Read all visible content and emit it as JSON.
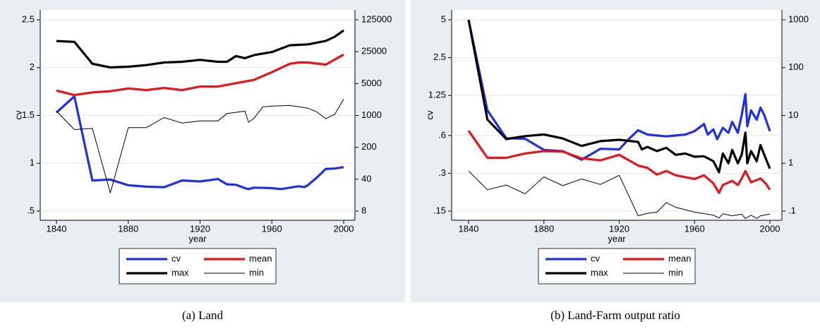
{
  "chart_data": [
    {
      "type": "line",
      "caption": "(a) Land",
      "xlabel": "year",
      "ylabel": "cv",
      "xlim": [
        1840,
        2000
      ],
      "xticks": [
        1840,
        1880,
        1920,
        1960,
        2000
      ],
      "ylim": [
        0.5,
        2.5
      ],
      "yticks": [
        {
          "value": 0.5,
          "label": ".5"
        },
        1,
        1.5,
        2,
        2.5
      ],
      "ylog": false,
      "y2lim": [
        8,
        125000
      ],
      "y2ticks": [
        8,
        40,
        200,
        1000,
        5000,
        25000,
        125000
      ],
      "y2log": true,
      "grid": true,
      "legend": "bottom",
      "series": [
        {
          "name": "cv",
          "color": "#1f2ee8",
          "linewidth": 3.2,
          "x": [
            1840,
            1850,
            1860,
            1870,
            1880,
            1890,
            1900,
            1910,
            1920,
            1930,
            1935,
            1940,
            1945,
            1947,
            1950,
            1960,
            1965,
            1970,
            1975,
            1978,
            1980,
            1985,
            1990,
            1995,
            2000
          ],
          "values": [
            1.53,
            1.7,
            0.82,
            0.83,
            0.77,
            0.755,
            0.75,
            0.82,
            0.81,
            0.835,
            0.78,
            0.775,
            0.74,
            0.73,
            0.745,
            0.74,
            0.73,
            0.745,
            0.76,
            0.75,
            0.77,
            0.85,
            0.94,
            0.945,
            0.96
          ]
        },
        {
          "name": "mean",
          "color": "#e8141b",
          "linewidth": 3.2,
          "axis": "y2",
          "x": [
            1840,
            1850,
            1860,
            1870,
            1880,
            1890,
            1900,
            1910,
            1920,
            1930,
            1940,
            1950,
            1960,
            1970,
            1975,
            1980,
            1990,
            2000
          ],
          "values": [
            3500,
            2800,
            3200,
            3400,
            3900,
            3600,
            4000,
            3600,
            4300,
            4300,
            5100,
            6000,
            8900,
            13600,
            14500,
            14500,
            13000,
            21600
          ]
        },
        {
          "name": "max",
          "color": "#000000",
          "linewidth": 3.2,
          "axis": "y2",
          "x": [
            1840,
            1850,
            1860,
            1870,
            1880,
            1890,
            1900,
            1910,
            1920,
            1930,
            1935,
            1940,
            1945,
            1950,
            1960,
            1970,
            1980,
            1990,
            1995,
            2000
          ],
          "values": [
            42800,
            41000,
            13600,
            11300,
            11700,
            12700,
            14500,
            15000,
            16500,
            15000,
            15000,
            20000,
            18000,
            21000,
            24500,
            34500,
            36000,
            43000,
            53000,
            73000
          ]
        },
        {
          "name": "min",
          "color": "#000000",
          "linewidth": 1,
          "axis": "y2",
          "x": [
            1840,
            1850,
            1860,
            1870,
            1880,
            1890,
            1900,
            1910,
            1920,
            1930,
            1935,
            1945,
            1947,
            1950,
            1955,
            1960,
            1970,
            1980,
            1985,
            1990,
            1995,
            2000
          ],
          "values": [
            1240,
            490,
            520,
            20,
            540,
            540,
            900,
            680,
            760,
            760,
            1100,
            1240,
            710,
            860,
            1540,
            1600,
            1650,
            1450,
            1200,
            850,
            1050,
            2270
          ]
        }
      ]
    },
    {
      "type": "line",
      "caption": "(b) Land-Farm output ratio",
      "xlabel": "year",
      "ylabel": "cv",
      "xlim": [
        1840,
        2000
      ],
      "xticks": [
        1840,
        1880,
        1920,
        1960,
        2000
      ],
      "ylim": [
        0.15,
        5
      ],
      "yticks": [
        {
          "value": 0.15,
          "label": ".15"
        },
        {
          "value": 0.3,
          "label": ".3"
        },
        {
          "value": 0.6,
          "label": ".6"
        },
        1.25,
        2.5,
        5
      ],
      "ylog": true,
      "y2lim": [
        0.1,
        1000
      ],
      "y2ticks": [
        {
          "value": 0.1,
          "label": ".1"
        },
        1,
        10,
        100,
        1000
      ],
      "y2log": true,
      "grid": true,
      "legend": "bottom",
      "series": [
        {
          "name": "cv",
          "color": "#1f2ee8",
          "linewidth": 3.2,
          "x": [
            1840,
            1850,
            1860,
            1870,
            1880,
            1890,
            1900,
            1910,
            1920,
            1925,
            1930,
            1935,
            1940,
            1945,
            1950,
            1955,
            1960,
            1965,
            1967,
            1970,
            1972,
            1975,
            1978,
            1980,
            1983,
            1985,
            1987,
            1988,
            1990,
            1993,
            1995,
            1997,
            2000
          ],
          "values": [
            5,
            0.95,
            0.57,
            0.565,
            0.46,
            0.45,
            0.385,
            0.47,
            0.465,
            0.56,
            0.66,
            0.61,
            0.6,
            0.59,
            0.6,
            0.61,
            0.65,
            0.74,
            0.61,
            0.67,
            0.56,
            0.69,
            0.63,
            0.77,
            0.63,
            0.87,
            1.28,
            0.71,
            0.95,
            0.8,
            1.0,
            0.87,
            0.65
          ]
        },
        {
          "name": "mean",
          "color": "#e8141b",
          "linewidth": 3.2,
          "axis": "y2",
          "x": [
            1840,
            1850,
            1860,
            1870,
            1880,
            1890,
            1900,
            1910,
            1920,
            1930,
            1935,
            1940,
            1945,
            1950,
            1960,
            1965,
            1970,
            1973,
            1975,
            1980,
            1983,
            1985,
            1987,
            1990,
            1995,
            1998,
            2000
          ],
          "values": [
            4.8,
            1.3,
            1.3,
            1.6,
            1.8,
            1.75,
            1.27,
            1.15,
            1.5,
            0.9,
            0.8,
            0.58,
            0.69,
            0.56,
            0.47,
            0.56,
            0.38,
            0.24,
            0.35,
            0.43,
            0.35,
            0.48,
            0.69,
            0.4,
            0.48,
            0.37,
            0.28
          ]
        },
        {
          "name": "max",
          "color": "#000000",
          "linewidth": 3.2,
          "axis": "y2",
          "x": [
            1840,
            1850,
            1860,
            1870,
            1880,
            1890,
            1900,
            1910,
            1920,
            1930,
            1932,
            1935,
            1940,
            1945,
            1950,
            1955,
            1960,
            1965,
            1970,
            1973,
            1975,
            1978,
            1980,
            1983,
            1985,
            1987,
            1988,
            1990,
            1993,
            1995,
            1997,
            2000
          ],
          "values": [
            1000,
            8.2,
            3.2,
            3.7,
            4.0,
            3.3,
            2.3,
            2.9,
            3.1,
            2.8,
            1.95,
            2.2,
            1.8,
            2.1,
            1.5,
            1.6,
            1.37,
            1.4,
            1.1,
            0.65,
            1.6,
            1.0,
            1.9,
            1.0,
            1.5,
            4.4,
            1.0,
            1.8,
            1.1,
            2.4,
            1.5,
            0.77
          ]
        },
        {
          "name": "min",
          "color": "#000000",
          "linewidth": 1,
          "axis": "y2",
          "x": [
            1840,
            1850,
            1860,
            1870,
            1880,
            1890,
            1900,
            1910,
            1920,
            1930,
            1935,
            1940,
            1945,
            1950,
            1960,
            1970,
            1973,
            1975,
            1980,
            1985,
            1987,
            1990,
            1993,
            1995,
            2000
          ],
          "values": [
            0.69,
            0.28,
            0.35,
            0.23,
            0.52,
            0.34,
            0.47,
            0.36,
            0.56,
            0.08,
            0.09,
            0.095,
            0.15,
            0.12,
            0.095,
            0.082,
            0.072,
            0.088,
            0.08,
            0.086,
            0.07,
            0.082,
            0.07,
            0.08,
            0.087
          ]
        }
      ]
    }
  ]
}
